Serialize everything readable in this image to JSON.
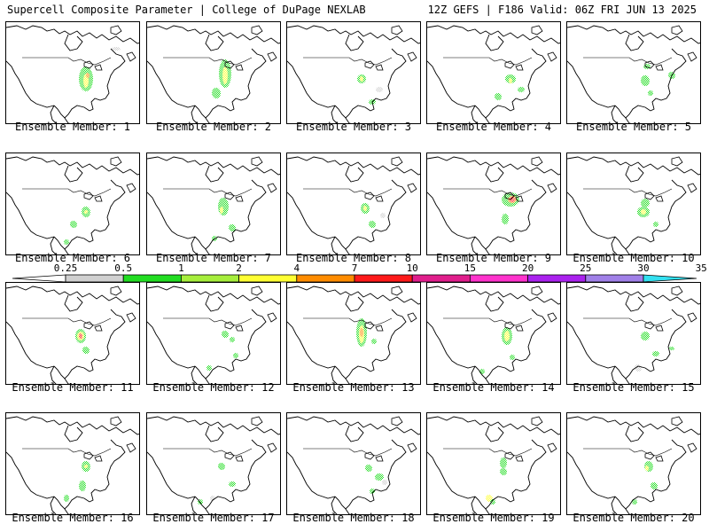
{
  "header": {
    "title_left": "Supercell Composite Parameter | College of DuPage NEXLAB",
    "title_right": "12Z GEFS | F186 Valid: 06Z FRI JUN 13 2025"
  },
  "panels": [
    {
      "label": "Ensemble Member: 1"
    },
    {
      "label": "Ensemble Member: 2"
    },
    {
      "label": "Ensemble Member: 3"
    },
    {
      "label": "Ensemble Member: 4"
    },
    {
      "label": "Ensemble Member: 5"
    },
    {
      "label": "Ensemble Member: 6"
    },
    {
      "label": "Ensemble Member: 7"
    },
    {
      "label": "Ensemble Member: 8"
    },
    {
      "label": "Ensemble Member: 9"
    },
    {
      "label": "Ensemble Member: 10"
    },
    {
      "label": "Ensemble Member: 11"
    },
    {
      "label": "Ensemble Member: 12"
    },
    {
      "label": "Ensemble Member: 13"
    },
    {
      "label": "Ensemble Member: 14"
    },
    {
      "label": "Ensemble Member: 15"
    },
    {
      "label": "Ensemble Member: 16"
    },
    {
      "label": "Ensemble Member: 17"
    },
    {
      "label": "Ensemble Member: 18"
    },
    {
      "label": "Ensemble Member: 19"
    },
    {
      "label": "Ensemble Member: 20"
    }
  ],
  "legend": {
    "levels": [
      "0.25",
      "0.5",
      "1",
      "2",
      "4",
      "7",
      "10",
      "15",
      "20",
      "25",
      "30",
      "35"
    ],
    "colors": [
      "#ffffff",
      "#d0d0d0",
      "#22dd22",
      "#a6ee3c",
      "#ffff33",
      "#ff8c00",
      "#ff1a1a",
      "#e01e8c",
      "#ff33cc",
      "#aa22ee",
      "#a080e8",
      "#33e0f0"
    ]
  }
}
